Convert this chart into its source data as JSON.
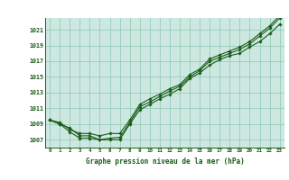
{
  "title": "Graphe pression niveau de la mer (hPa)",
  "bg_color": "#cce8e0",
  "plot_bg": "#cce8e0",
  "grid_color": "#99ccbb",
  "line_color": "#1a5c1a",
  "marker_color": "#1a5c1a",
  "outer_bg": "#ffffff",
  "xlim": [
    -0.5,
    23.5
  ],
  "ylim": [
    1006.0,
    1022.5
  ],
  "yticks": [
    1007,
    1009,
    1011,
    1013,
    1015,
    1017,
    1019,
    1021
  ],
  "xticks": [
    0,
    1,
    2,
    3,
    4,
    5,
    6,
    7,
    8,
    9,
    10,
    11,
    12,
    13,
    14,
    15,
    16,
    17,
    18,
    19,
    20,
    21,
    22,
    23
  ],
  "series1": [
    1009.5,
    1009.0,
    1008.5,
    1007.5,
    1007.5,
    1007.0,
    1007.2,
    1007.3,
    1009.2,
    1011.2,
    1011.8,
    1012.5,
    1013.2,
    1013.8,
    1015.0,
    1015.8,
    1017.0,
    1017.5,
    1018.0,
    1018.5,
    1019.2,
    1020.2,
    1021.2,
    1022.5
  ],
  "series2": [
    1009.5,
    1009.0,
    1008.0,
    1007.2,
    1007.2,
    1007.0,
    1007.0,
    1007.0,
    1009.0,
    1010.8,
    1011.5,
    1012.2,
    1012.8,
    1013.5,
    1014.8,
    1015.5,
    1016.5,
    1017.2,
    1017.7,
    1018.0,
    1018.8,
    1019.5,
    1020.5,
    1021.7
  ],
  "series3": [
    1009.5,
    1009.2,
    1008.3,
    1007.8,
    1007.8,
    1007.5,
    1007.8,
    1007.8,
    1009.5,
    1011.5,
    1012.2,
    1012.8,
    1013.5,
    1014.0,
    1015.3,
    1016.0,
    1017.3,
    1017.8,
    1018.3,
    1018.8,
    1019.5,
    1020.5,
    1021.5,
    1022.8
  ]
}
